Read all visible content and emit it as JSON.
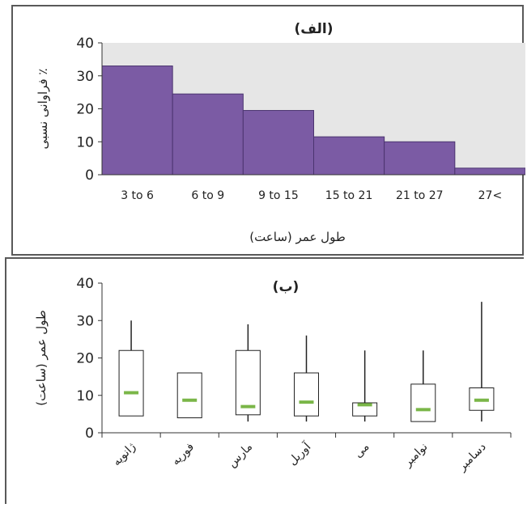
{
  "chart_data": [
    {
      "type": "bar",
      "title": "(الف)",
      "xlabel": "طول عمر (ساعت)",
      "ylabel": "فراوانی نسبی ٪",
      "categories": [
        "3 to 6",
        "6 to 9",
        "9 to 15",
        "15 to 21",
        "21 to 27",
        "27<"
      ],
      "values": [
        33,
        24.5,
        19.5,
        11.5,
        10,
        2
      ],
      "ylim": [
        0,
        40
      ],
      "yticks": [
        "0",
        "10",
        "20",
        "30",
        "40"
      ],
      "colors": {
        "bar": "#7b5ba4",
        "bar_edge": "#4b3470",
        "plot_bg": "#e6e6e6"
      }
    },
    {
      "type": "box",
      "title": "(ب)",
      "xlabel": "",
      "ylabel": "طول عمر (ساعت)",
      "categories": [
        "ژانویه",
        "فوریه",
        "مارس",
        "آوریل",
        "می",
        "نوامبر",
        "دسامبر"
      ],
      "boxes": [
        {
          "min": 4.5,
          "q1": 4.5,
          "median": 10.7,
          "q3": 22,
          "max": 30
        },
        {
          "min": 4,
          "q1": 4,
          "median": 8.7,
          "q3": 16,
          "max": 16
        },
        {
          "min": 3,
          "q1": 4.8,
          "median": 7,
          "q3": 22,
          "max": 29
        },
        {
          "min": 3,
          "q1": 4.5,
          "median": 8.2,
          "q3": 16,
          "max": 26
        },
        {
          "min": 3,
          "q1": 4.5,
          "median": 7.5,
          "q3": 8,
          "max": 22
        },
        {
          "min": 3,
          "q1": 3,
          "median": 6.2,
          "q3": 13,
          "max": 22
        },
        {
          "min": 3,
          "q1": 6,
          "median": 8.7,
          "q3": 12,
          "max": 35
        }
      ],
      "ylim": [
        0,
        40
      ],
      "yticks": [
        "0",
        "10",
        "20",
        "30",
        "40"
      ],
      "colors": {
        "median": "#7ab648",
        "box_fill": "#ffffff",
        "line": "#222222"
      }
    }
  ]
}
